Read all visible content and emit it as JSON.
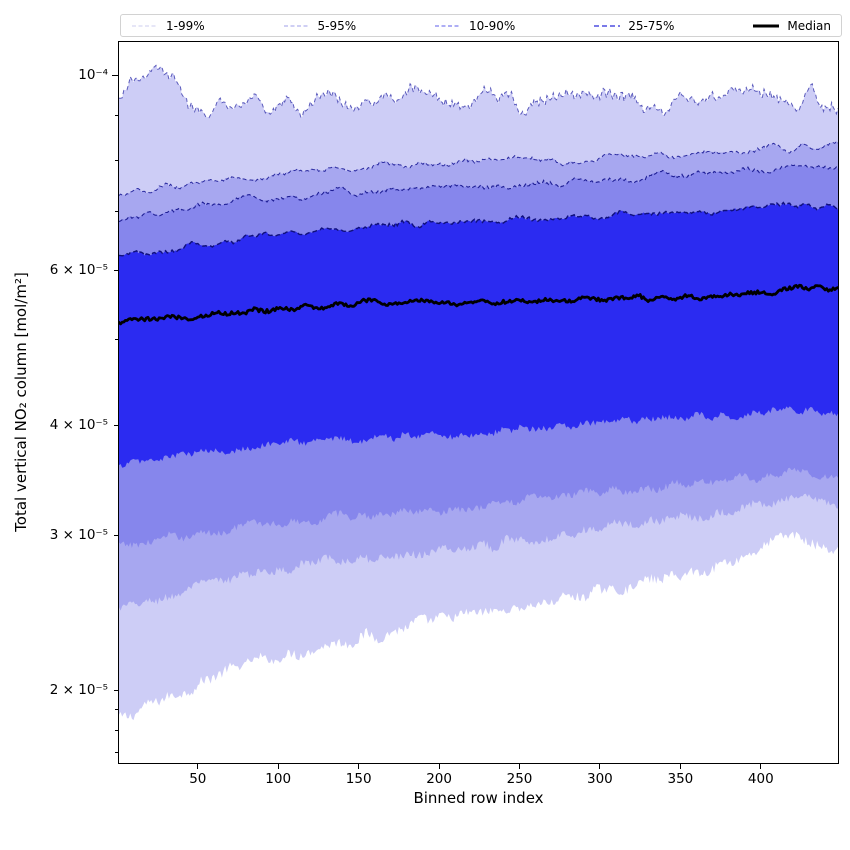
{
  "figure": {
    "background": "#ffffff",
    "plot_border_color": "#000000"
  },
  "chart_data": {
    "type": "area",
    "subtype": "percentile-band-fan",
    "title": "",
    "xlabel": "Binned row index",
    "ylabel": "Total vertical NO₂ column [mol/m²]",
    "x_axis": {
      "lim": [
        1,
        448
      ],
      "ticks": [
        50,
        100,
        150,
        200,
        250,
        300,
        350,
        400
      ]
    },
    "y_axis": {
      "scale": "log",
      "lim": [
        1.657e-05,
        0.00010902
      ],
      "labeled_ticks": [
        {
          "v": 0.0001,
          "label": "10⁻⁴",
          "major": true
        },
        {
          "v": 6e-05,
          "label": "6 × 10⁻⁵",
          "major": false
        },
        {
          "v": 4e-05,
          "label": "4 × 10⁻⁵",
          "major": false
        },
        {
          "v": 3e-05,
          "label": "3 × 10⁻⁵",
          "major": false
        },
        {
          "v": 2e-05,
          "label": "2 × 10⁻⁵",
          "major": false
        }
      ],
      "minor_ticks": [
        9e-05,
        8e-05,
        7e-05,
        5e-05,
        1.9e-05,
        1.8e-05,
        1.7e-05
      ]
    },
    "x_control": [
      1,
      27,
      53,
      79,
      105,
      131,
      158,
      184,
      210,
      236,
      262,
      289,
      315,
      341,
      367,
      394,
      420,
      448
    ],
    "percentiles": {
      "p99": [
        9.55e-05,
        0.0001005,
        9e-05,
        9.25e-05,
        9.3e-05,
        9.45e-05,
        9.3e-05,
        9.5e-05,
        9.35e-05,
        9.45e-05,
        9.25e-05,
        9.55e-05,
        9.35e-05,
        9.3e-05,
        9.5e-05,
        9.75e-05,
        9.55e-05,
        9.05e-05
      ],
      "p95": [
        7.3e-05,
        7.4e-05,
        7.5e-05,
        7.62e-05,
        7.72e-05,
        7.8e-05,
        7.88e-05,
        7.92e-05,
        7.95e-05,
        7.98e-05,
        8.02e-05,
        8.05e-05,
        8.08e-05,
        8.12e-05,
        8.18e-05,
        8.22e-05,
        8.28e-05,
        8.3e-05
      ],
      "p90": [
        6.85e-05,
        6.95e-05,
        7.08e-05,
        7.18e-05,
        7.28e-05,
        7.35e-05,
        7.4e-05,
        7.44e-05,
        7.48e-05,
        7.5e-05,
        7.54e-05,
        7.58e-05,
        7.62e-05,
        7.68e-05,
        7.72e-05,
        7.78e-05,
        7.85e-05,
        7.88e-05
      ],
      "p75": [
        6.2e-05,
        6.3e-05,
        6.42e-05,
        6.52e-05,
        6.62e-05,
        6.68e-05,
        6.74e-05,
        6.78e-05,
        6.8e-05,
        6.83e-05,
        6.86e-05,
        6.9e-05,
        6.93e-05,
        6.96e-05,
        7e-05,
        7.05e-05,
        7.1e-05,
        7.12e-05
      ],
      "p50": [
        5.22e-05,
        5.28e-05,
        5.34e-05,
        5.4e-05,
        5.44e-05,
        5.47e-05,
        5.5e-05,
        5.51e-05,
        5.52e-05,
        5.53e-05,
        5.55e-05,
        5.56e-05,
        5.58e-05,
        5.6e-05,
        5.62e-05,
        5.65e-05,
        5.72e-05,
        5.7e-05
      ],
      "p25": [
        3.6e-05,
        3.66e-05,
        3.72e-05,
        3.78e-05,
        3.82e-05,
        3.85e-05,
        3.87e-05,
        3.89e-05,
        3.91e-05,
        3.94e-05,
        3.97e-05,
        4e-05,
        4.03e-05,
        4.06e-05,
        4.1e-05,
        4.14e-05,
        4.18e-05,
        4.12e-05
      ],
      "p10": [
        2.9e-05,
        2.96e-05,
        3.02e-05,
        3.07e-05,
        3.11e-05,
        3.14e-05,
        3.17e-05,
        3.19e-05,
        3.22e-05,
        3.26e-05,
        3.3e-05,
        3.33e-05,
        3.37e-05,
        3.41e-05,
        3.46e-05,
        3.5e-05,
        3.55e-05,
        3.48e-05
      ],
      "p5": [
        2.46e-05,
        2.54e-05,
        2.62e-05,
        2.7e-05,
        2.76e-05,
        2.8e-05,
        2.83e-05,
        2.86e-05,
        2.9e-05,
        2.94e-05,
        2.99e-05,
        3.04e-05,
        3.09e-05,
        3.13e-05,
        3.18e-05,
        3.23e-05,
        3.3e-05,
        3.24e-05
      ],
      "p1": [
        1.84e-05,
        1.95e-05,
        2.05e-05,
        2.13e-05,
        2.2e-05,
        2.26e-05,
        2.31e-05,
        2.36e-05,
        2.41e-05,
        2.46e-05,
        2.51e-05,
        2.56e-05,
        2.62e-05,
        2.68e-05,
        2.75e-05,
        2.87e-05,
        3e-05,
        2.86e-05
      ]
    },
    "jitter": {
      "p99": {
        "s": 0.011,
        "h": 0.003
      },
      "p95": {
        "s": 0.0035,
        "h": 0.0015
      },
      "p90": {
        "s": 0.0035,
        "h": 0.0015
      },
      "p75": {
        "s": 0.003,
        "h": 0.0015
      },
      "p50": {
        "s": 0.0028,
        "h": 0.0018
      },
      "p25": {
        "s": 0.003,
        "h": 0.0035
      },
      "p10": {
        "s": 0.0035,
        "h": 0.004
      },
      "p5": {
        "s": 0.0035,
        "h": 0.0045
      },
      "p1": {
        "s": 0.005,
        "h": 0.0055
      }
    },
    "bands": [
      {
        "label": "1-99%",
        "lo": "p1",
        "hi": "p99",
        "fill": "#cdcdf6",
        "edge_color": "#5b5bbc",
        "edge_width": 1,
        "edge_dash": "4 3"
      },
      {
        "label": "5-95%",
        "lo": "p5",
        "hi": "p95",
        "fill": "#a7a7f0",
        "edge_color": "#2a2aa0",
        "edge_width": 1,
        "edge_dash": "4 3"
      },
      {
        "label": "10-90%",
        "lo": "p10",
        "hi": "p90",
        "fill": "#8686ec",
        "edge_color": "#1e1e95",
        "edge_width": 1.1,
        "edge_dash": "4 3"
      },
      {
        "label": "25-75%",
        "lo": "p25",
        "hi": "p75",
        "fill": "#2b2bf1",
        "edge_color": "#10107c",
        "edge_width": 1.4,
        "edge_dash": "5 3"
      }
    ],
    "median": {
      "label": "Median",
      "key": "p50",
      "color": "#000000",
      "width": 2.8
    },
    "legend": [
      {
        "label": "1-99%",
        "color": "#d6d6f2",
        "dash": "4 2.5",
        "width": 1.2
      },
      {
        "label": "5-95%",
        "color": "#b2b2ee",
        "dash": "4 2.5",
        "width": 1.2
      },
      {
        "label": "10-90%",
        "color": "#9494f2",
        "dash": "4 2.5",
        "width": 1.4
      },
      {
        "label": "25-75%",
        "color": "#7a7ae8",
        "dash": "5 3",
        "width": 2
      },
      {
        "label": "Median",
        "color": "#000000",
        "dash": "",
        "width": 3
      }
    ],
    "legend_position": "top",
    "grid": false
  }
}
